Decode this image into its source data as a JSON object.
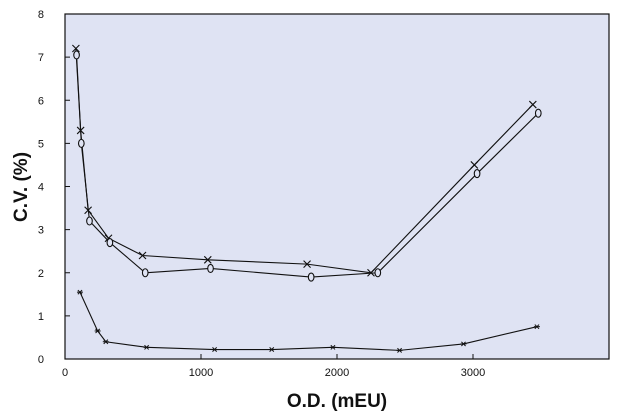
{
  "chart_data": {
    "type": "line",
    "title": "",
    "xlabel": "O.D. (mEU)",
    "ylabel": "C.V. (%)",
    "xlim": [
      0,
      4000
    ],
    "ylim": [
      0,
      8
    ],
    "x_ticks": [
      0,
      1000,
      2000,
      3000
    ],
    "y_ticks": [
      0,
      1,
      2,
      3,
      4,
      5,
      6,
      7,
      8
    ],
    "grid": false,
    "background_color": "#dfe3f3",
    "line_color": "#111111",
    "series": [
      {
        "marker": "x",
        "points": [
          [
            80,
            7.2
          ],
          [
            115,
            5.3
          ],
          [
            170,
            3.45
          ],
          [
            320,
            2.8
          ],
          [
            570,
            2.4
          ],
          [
            1050,
            2.3
          ],
          [
            1780,
            2.2
          ],
          [
            2250,
            2.0
          ],
          [
            3010,
            4.5
          ],
          [
            3440,
            5.9
          ]
        ]
      },
      {
        "marker": "o",
        "points": [
          [
            85,
            7.05
          ],
          [
            120,
            5.0
          ],
          [
            180,
            3.2
          ],
          [
            330,
            2.7
          ],
          [
            590,
            2.0
          ],
          [
            1070,
            2.1
          ],
          [
            1810,
            1.9
          ],
          [
            2300,
            2.0
          ],
          [
            3030,
            4.3
          ],
          [
            3480,
            5.7
          ]
        ]
      },
      {
        "marker": "*",
        "points": [
          [
            110,
            1.55
          ],
          [
            240,
            0.65
          ],
          [
            300,
            0.4
          ],
          [
            600,
            0.27
          ],
          [
            1100,
            0.22
          ],
          [
            1520,
            0.22
          ],
          [
            1970,
            0.27
          ],
          [
            2460,
            0.2
          ],
          [
            2930,
            0.35
          ],
          [
            3470,
            0.75
          ]
        ]
      }
    ]
  }
}
